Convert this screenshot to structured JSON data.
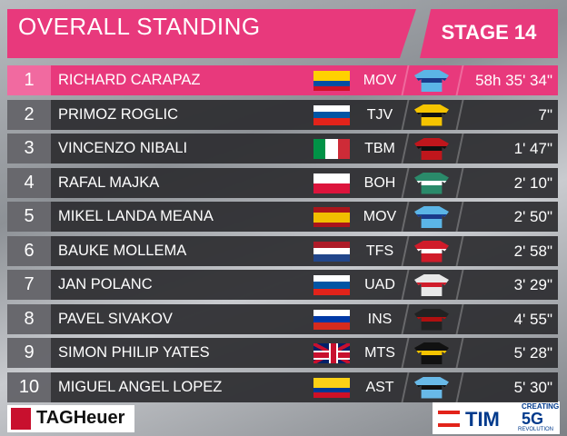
{
  "header": {
    "title": "OVERALL STANDING",
    "stage": "STAGE 14"
  },
  "rows": [
    {
      "rank": "1",
      "name": "RICHARD CARAPAZ",
      "team": "MOV",
      "time": "58h 35' 34\""
    },
    {
      "rank": "2",
      "name": "PRIMOZ ROGLIC",
      "team": "TJV",
      "time": "7\""
    },
    {
      "rank": "3",
      "name": "VINCENZO NIBALI",
      "team": "TBM",
      "time": "1' 47\""
    },
    {
      "rank": "4",
      "name": "RAFAL MAJKA",
      "team": "BOH",
      "time": "2' 10\""
    },
    {
      "rank": "5",
      "name": "MIKEL LANDA MEANA",
      "team": "MOV",
      "time": "2' 50\""
    },
    {
      "rank": "6",
      "name": "BAUKE MOLLEMA",
      "team": "TFS",
      "time": "2' 58\""
    },
    {
      "rank": "7",
      "name": "JAN POLANC",
      "team": "UAD",
      "time": "3' 29\""
    },
    {
      "rank": "8",
      "name": "PAVEL SIVAKOV",
      "team": "INS",
      "time": "4' 55\""
    },
    {
      "rank": "9",
      "name": "SIMON PHILIP YATES",
      "team": "MTS",
      "time": "5' 28\""
    },
    {
      "rank": "10",
      "name": "MIGUEL ANGEL LOPEZ",
      "team": "AST",
      "time": "5' 30\""
    }
  ],
  "sponsors": {
    "left": "TAGHeuer",
    "right": "TIM",
    "right_top": "CREATING",
    "right_big": "5G",
    "right_small": "REVOLUTION"
  }
}
